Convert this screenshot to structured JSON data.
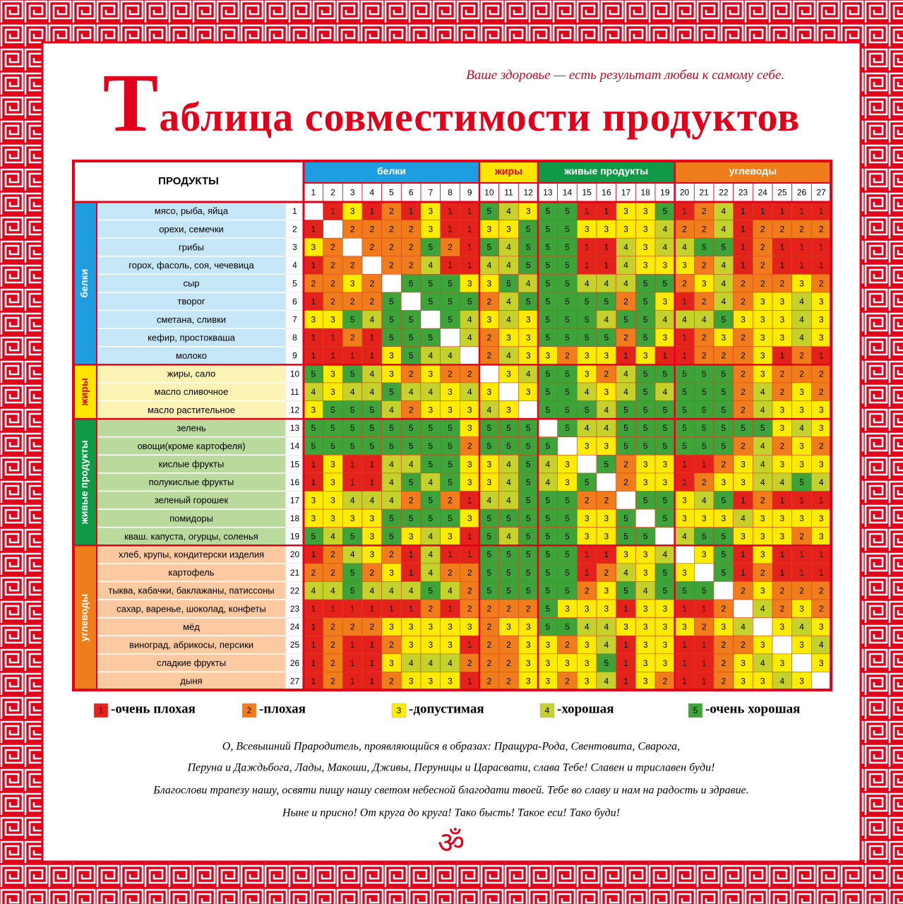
{
  "header": {
    "title": "Таблица совместимости продуктов",
    "subtitle": "Ваше здоровье — есть результат любви к самому себе."
  },
  "table": {
    "corner": "ПРОДУКТЫ",
    "groups": [
      {
        "name": "белки",
        "color": "#1e9ee0",
        "light": "#c4e6f7",
        "text": "#ffffff",
        "rows": [
          {
            "number": 1,
            "name": "мясо, рыба, яйца",
            "values": [
              null,
              1,
              3,
              1,
              2,
              1,
              3,
              1,
              1,
              5,
              4,
              3,
              5,
              5,
              1,
              1,
              3,
              3,
              5,
              1,
              2,
              4,
              1,
              1,
              1,
              1,
              1
            ]
          },
          {
            "number": 2,
            "name": "орехи, семечки",
            "values": [
              1,
              null,
              2,
              2,
              2,
              2,
              3,
              1,
              1,
              3,
              3,
              5,
              5,
              5,
              3,
              3,
              3,
              3,
              4,
              2,
              2,
              4,
              1,
              2,
              2,
              2,
              2
            ]
          },
          {
            "number": 3,
            "name": "грибы",
            "values": [
              3,
              2,
              null,
              2,
              2,
              2,
              5,
              2,
              1,
              5,
              4,
              5,
              5,
              5,
              1,
              1,
              4,
              3,
              4,
              4,
              5,
              5,
              1,
              2,
              1,
              1,
              1
            ]
          },
          {
            "number": 4,
            "name": "горох, фасоль, соя, чечевица",
            "values": [
              1,
              2,
              2,
              null,
              2,
              2,
              4,
              1,
              1,
              4,
              4,
              5,
              5,
              5,
              1,
              1,
              4,
              3,
              3,
              3,
              2,
              4,
              1,
              2,
              1,
              1,
              1
            ]
          },
          {
            "number": 5,
            "name": "сыр",
            "values": [
              2,
              2,
              3,
              2,
              null,
              5,
              5,
              5,
              3,
              3,
              5,
              4,
              5,
              5,
              4,
              4,
              4,
              5,
              5,
              2,
              3,
              4,
              2,
              2,
              2,
              3,
              2
            ]
          },
          {
            "number": 6,
            "name": "творог",
            "values": [
              1,
              2,
              2,
              2,
              5,
              null,
              5,
              5,
              5,
              2,
              4,
              5,
              5,
              5,
              5,
              5,
              2,
              5,
              3,
              1,
              2,
              4,
              2,
              3,
              3,
              4,
              3
            ]
          },
          {
            "number": 7,
            "name": "сметана, сливки",
            "values": [
              3,
              3,
              5,
              4,
              5,
              5,
              null,
              5,
              4,
              3,
              4,
              3,
              5,
              5,
              5,
              4,
              5,
              5,
              4,
              4,
              4,
              5,
              3,
              3,
              3,
              4,
              3
            ]
          },
          {
            "number": 8,
            "name": "кефир, простокваша",
            "values": [
              1,
              1,
              2,
              1,
              5,
              5,
              5,
              null,
              4,
              2,
              3,
              3,
              5,
              5,
              5,
              5,
              2,
              5,
              3,
              1,
              2,
              3,
              2,
              3,
              3,
              4,
              3
            ]
          },
          {
            "number": 9,
            "name": "молоко",
            "values": [
              1,
              1,
              1,
              1,
              3,
              5,
              4,
              4,
              null,
              2,
              4,
              3,
              3,
              2,
              3,
              3,
              1,
              3,
              1,
              1,
              2,
              2,
              2,
              3,
              1,
              2,
              1
            ]
          }
        ]
      },
      {
        "name": "жиры",
        "color": "#ffe600",
        "light": "#fbf3b4",
        "text": "#e3001b",
        "rows": [
          {
            "number": 10,
            "name": "жиры, сало",
            "values": [
              5,
              3,
              5,
              4,
              3,
              2,
              3,
              2,
              2,
              null,
              3,
              4,
              5,
              5,
              3,
              2,
              4,
              5,
              5,
              5,
              5,
              5,
              2,
              3,
              2,
              2,
              2
            ]
          },
          {
            "number": 11,
            "name": "масло сливочное",
            "values": [
              4,
              3,
              4,
              4,
              5,
              4,
              4,
              3,
              4,
              3,
              null,
              3,
              5,
              5,
              4,
              3,
              4,
              5,
              4,
              5,
              5,
              5,
              2,
              4,
              2,
              3,
              2
            ]
          },
          {
            "number": 12,
            "name": "масло растительное",
            "values": [
              3,
              5,
              5,
              5,
              4,
              2,
              3,
              3,
              3,
              4,
              3,
              null,
              5,
              5,
              5,
              4,
              5,
              5,
              5,
              5,
              5,
              5,
              2,
              4,
              3,
              3,
              3
            ]
          }
        ]
      },
      {
        "name": "живые продукты",
        "color": "#0f9a48",
        "light": "#b9d99d",
        "text": "#ffffff",
        "rows": [
          {
            "number": 13,
            "name": "зелень",
            "values": [
              5,
              5,
              5,
              5,
              5,
              5,
              5,
              5,
              3,
              5,
              5,
              5,
              null,
              5,
              4,
              4,
              5,
              5,
              5,
              5,
              5,
              5,
              5,
              5,
              3,
              4,
              3
            ]
          },
          {
            "number": 14,
            "name": "овощи(кроме картофеля)",
            "values": [
              5,
              5,
              5,
              5,
              5,
              5,
              5,
              5,
              2,
              5,
              5,
              5,
              5,
              null,
              3,
              3,
              5,
              5,
              5,
              5,
              5,
              5,
              2,
              4,
              2,
              3,
              2
            ]
          },
          {
            "number": 15,
            "name": "кислые фрукты",
            "values": [
              1,
              3,
              1,
              1,
              4,
              4,
              5,
              5,
              3,
              3,
              4,
              5,
              4,
              3,
              null,
              5,
              2,
              3,
              3,
              1,
              1,
              2,
              3,
              4,
              3,
              3,
              3
            ]
          },
          {
            "number": 16,
            "name": "полукислые фрукты",
            "values": [
              1,
              3,
              1,
              1,
              4,
              5,
              4,
              5,
              3,
              3,
              4,
              5,
              4,
              3,
              5,
              null,
              2,
              3,
              3,
              1,
              2,
              3,
              3,
              4,
              4,
              5,
              4
            ]
          },
          {
            "number": 17,
            "name": "зеленый горошек",
            "values": [
              3,
              3,
              4,
              4,
              4,
              2,
              5,
              2,
              1,
              4,
              4,
              5,
              5,
              5,
              2,
              2,
              null,
              5,
              5,
              3,
              4,
              5,
              1,
              2,
              1,
              1,
              1
            ]
          },
          {
            "number": 18,
            "name": "помидоры",
            "values": [
              3,
              3,
              3,
              3,
              5,
              5,
              5,
              5,
              3,
              5,
              5,
              5,
              5,
              5,
              3,
              3,
              5,
              null,
              5,
              3,
              3,
              3,
              4,
              3,
              3,
              3,
              3
            ]
          },
          {
            "number": 19,
            "name": "кваш. капуста, огурцы, соленья",
            "values": [
              5,
              4,
              5,
              3,
              5,
              3,
              4,
              3,
              1,
              5,
              4,
              5,
              5,
              5,
              3,
              3,
              5,
              5,
              null,
              4,
              5,
              5,
              3,
              3,
              3,
              2,
              3
            ]
          }
        ]
      },
      {
        "name": "углеводы",
        "color": "#f07d1b",
        "light": "#fcc9a0",
        "text": "#ffffff",
        "rows": [
          {
            "number": 20,
            "name": "хлеб, крупы, кондитерски изделия",
            "values": [
              1,
              2,
              4,
              3,
              2,
              1,
              4,
              1,
              1,
              5,
              5,
              5,
              5,
              5,
              1,
              1,
              3,
              3,
              4,
              null,
              3,
              5,
              1,
              3,
              1,
              1,
              1
            ]
          },
          {
            "number": 21,
            "name": "картофель",
            "values": [
              2,
              2,
              5,
              2,
              3,
              1,
              4,
              2,
              2,
              5,
              5,
              5,
              5,
              5,
              1,
              2,
              4,
              3,
              5,
              3,
              null,
              5,
              1,
              2,
              1,
              1,
              1
            ]
          },
          {
            "number": 22,
            "name": "тыква, кабачки, баклажаны, патиссоны",
            "values": [
              4,
              4,
              5,
              4,
              4,
              4,
              5,
              4,
              2,
              5,
              5,
              5,
              5,
              5,
              2,
              3,
              5,
              4,
              5,
              5,
              5,
              null,
              2,
              3,
              2,
              2,
              2
            ]
          },
          {
            "number": 23,
            "name": "сахар, варенье, шоколад, конфеты",
            "values": [
              1,
              1,
              1,
              1,
              1,
              1,
              2,
              1,
              2,
              2,
              2,
              2,
              5,
              3,
              3,
              3,
              1,
              3,
              3,
              1,
              1,
              2,
              null,
              4,
              2,
              3,
              2
            ]
          },
          {
            "number": 24,
            "name": "мёд",
            "values": [
              1,
              2,
              2,
              2,
              3,
              3,
              3,
              3,
              3,
              2,
              3,
              3,
              5,
              5,
              4,
              4,
              3,
              3,
              3,
              3,
              2,
              3,
              4,
              null,
              3,
              4,
              3
            ]
          },
          {
            "number": 25,
            "name": "виноград, абрикосы, персики",
            "values": [
              1,
              2,
              1,
              1,
              2,
              3,
              3,
              3,
              1,
              2,
              2,
              3,
              3,
              2,
              3,
              4,
              1,
              3,
              3,
              1,
              1,
              2,
              2,
              3,
              null,
              3,
              4
            ]
          },
          {
            "number": 26,
            "name": "сладкие фрукты",
            "values": [
              1,
              2,
              1,
              1,
              3,
              4,
              4,
              4,
              2,
              2,
              2,
              3,
              3,
              3,
              3,
              5,
              1,
              3,
              3,
              1,
              1,
              2,
              3,
              4,
              3,
              null,
              3
            ]
          },
          {
            "number": 27,
            "name": "дыня",
            "values": [
              1,
              2,
              1,
              1,
              2,
              3,
              3,
              3,
              1,
              2,
              2,
              3,
              3,
              2,
              3,
              4,
              1,
              3,
              2,
              1,
              1,
              2,
              3,
              3,
              4,
              3,
              null
            ]
          }
        ]
      }
    ]
  },
  "legend": [
    {
      "value": 1,
      "label": "-очень плохая",
      "color": "#e3231b"
    },
    {
      "value": 2,
      "label": "-плохая",
      "color": "#f07c1b"
    },
    {
      "value": 3,
      "label": "-допустимая",
      "color": "#ffeb00"
    },
    {
      "value": 4,
      "label": "-хорошая",
      "color": "#c6d22c"
    },
    {
      "value": 5,
      "label": "-очень хорошая",
      "color": "#3ea339"
    }
  ],
  "footer": {
    "lines": [
      "О, Всевышний Прародитель, проявляющийся в образах: Пращура-Рода, Свентовита, Сварога,",
      "Перуна и Даждьбога, Лады, Макоши, Дживы, Перуницы и Царасвати, слава Тебе! Славен и трислав​ен буди!",
      "Благослови трапезу нашу, освяти пищу нашу светом небесной благодати твоей. Тебе во славу и нам на радость и здравие.",
      "Ныне и присно! От круга до круга! Тако бысть! Такое еси! Тако буди!"
    ],
    "symbol": "ॐ"
  }
}
